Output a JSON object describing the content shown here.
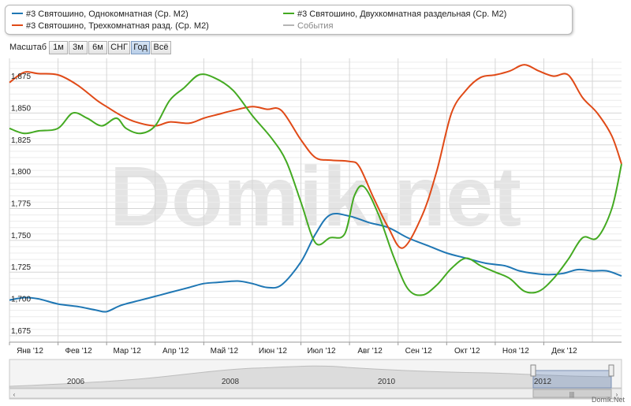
{
  "legend": [
    {
      "label": "#3 Святошино, Однокомнатная (Ср. M2)",
      "color": "#1f77b4"
    },
    {
      "label": "#3 Святошино, Трехкомнатная разд. (Ср. M2)",
      "color": "#e04a17"
    },
    {
      "label": "#3 Святошино, Двухкомнатная раздельная (Ср. M2)",
      "color": "#44aa22"
    },
    {
      "label": "События",
      "color": "#999999"
    }
  ],
  "zoom": {
    "label": "Масштаб",
    "buttons": [
      "1м",
      "3м",
      "6м",
      "СНГ",
      "Год",
      "Всё"
    ],
    "active": "Год"
  },
  "watermark": "Domik.net",
  "credit": "Domik.Net",
  "chart_data": {
    "type": "line",
    "x_ticks": [
      "Янв '12",
      "Фев '12",
      "Мар '12",
      "Апр '12",
      "Май '12",
      "Июн '12",
      "Июл '12",
      "Авг '12",
      "Сен '12",
      "Окт '12",
      "Ноя '12",
      "Дек '12"
    ],
    "y_ticks": [
      "1,675",
      "1,700",
      "1,725",
      "1,750",
      "1,775",
      "1,800",
      "1,825",
      "1,850",
      "1,875"
    ],
    "ylim": [
      1670,
      1893
    ],
    "xlim": [
      0,
      12.6
    ],
    "grid": true,
    "legend_position": "top",
    "series": [
      {
        "name": "#3 Святошино, Однокомнатная (Ср. M2)",
        "color": "#1f77b4",
        "x": [
          0,
          0.3,
          0.6,
          1.0,
          1.4,
          1.8,
          2.0,
          2.3,
          2.7,
          3.0,
          3.3,
          3.7,
          4.0,
          4.3,
          4.7,
          5.0,
          5.3,
          5.6,
          6.0,
          6.3,
          6.6,
          7.0,
          7.4,
          7.8,
          8.2,
          8.6,
          9.0,
          9.4,
          9.8,
          10.2,
          10.5,
          10.8,
          11.1,
          11.4,
          11.7,
          12.0,
          12.3,
          12.6
        ],
        "y": [
          1703,
          1705,
          1704,
          1700,
          1698,
          1695,
          1694,
          1699,
          1703,
          1706,
          1709,
          1713,
          1716,
          1717,
          1718,
          1716,
          1713,
          1715,
          1733,
          1755,
          1770,
          1769,
          1764,
          1760,
          1752,
          1746,
          1740,
          1736,
          1732,
          1730,
          1726,
          1724,
          1723,
          1724,
          1727,
          1726,
          1726,
          1722
        ]
      },
      {
        "name": "#3 Святошино, Трехкомнатная разд. (Ср. M2)",
        "color": "#e04a17",
        "x": [
          0,
          0.3,
          0.6,
          1.0,
          1.4,
          1.8,
          2.0,
          2.3,
          2.6,
          3.0,
          3.3,
          3.7,
          4.0,
          4.3,
          4.6,
          5.0,
          5.3,
          5.6,
          6.0,
          6.3,
          6.6,
          7.0,
          7.2,
          7.5,
          7.8,
          8.1,
          8.5,
          8.8,
          9.1,
          9.4,
          9.7,
          10.0,
          10.3,
          10.6,
          10.9,
          11.2,
          11.5,
          11.8,
          12.1,
          12.4,
          12.6
        ],
        "y": [
          1874,
          1882,
          1881,
          1880,
          1872,
          1860,
          1855,
          1848,
          1843,
          1840,
          1843,
          1842,
          1846,
          1849,
          1852,
          1855,
          1853,
          1852,
          1829,
          1815,
          1813,
          1812,
          1808,
          1783,
          1760,
          1744,
          1770,
          1805,
          1850,
          1868,
          1878,
          1880,
          1883,
          1888,
          1883,
          1879,
          1880,
          1862,
          1850,
          1832,
          1810
        ]
      },
      {
        "name": "#3 Святошино, Двухкомнатная раздельная (Ср. M2)",
        "color": "#44aa22",
        "x": [
          0,
          0.3,
          0.6,
          1.0,
          1.3,
          1.6,
          1.9,
          2.2,
          2.4,
          2.7,
          3.0,
          3.3,
          3.6,
          3.9,
          4.2,
          4.6,
          5.0,
          5.4,
          5.7,
          6.0,
          6.3,
          6.6,
          6.9,
          7.1,
          7.3,
          7.6,
          7.9,
          8.2,
          8.5,
          8.8,
          9.1,
          9.4,
          9.7,
          10.0,
          10.3,
          10.6,
          10.9,
          11.2,
          11.5,
          11.8,
          12.1,
          12.4,
          12.6
        ],
        "y": [
          1838,
          1834,
          1836,
          1838,
          1850,
          1846,
          1840,
          1846,
          1838,
          1834,
          1840,
          1860,
          1870,
          1880,
          1878,
          1868,
          1848,
          1830,
          1812,
          1780,
          1748,
          1752,
          1755,
          1785,
          1792,
          1770,
          1738,
          1712,
          1707,
          1715,
          1728,
          1736,
          1730,
          1725,
          1720,
          1710,
          1710,
          1720,
          1735,
          1752,
          1752,
          1775,
          1810
        ]
      }
    ]
  }
}
